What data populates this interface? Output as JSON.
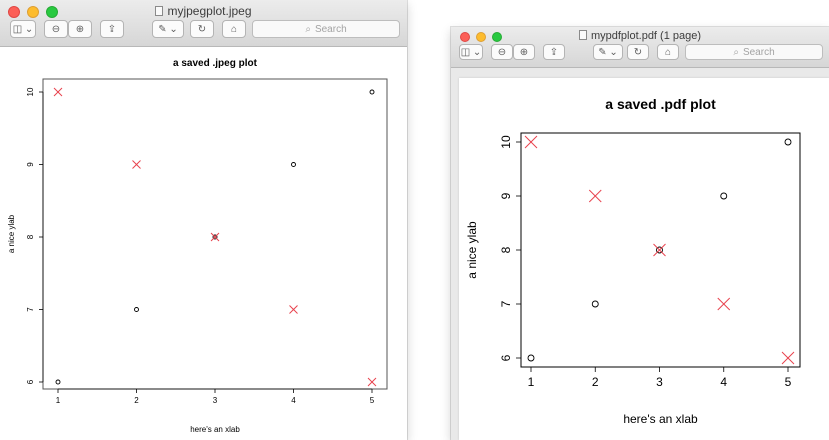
{
  "left_window": {
    "title": "myjpegplot.jpeg",
    "search_placeholder": "Search"
  },
  "right_window": {
    "title": "mypdfplot.pdf (1 page)",
    "search_placeholder": "Search"
  },
  "chart_data": [
    {
      "type": "scatter",
      "title": "a saved .jpeg plot",
      "xlabel": "here's an xlab",
      "ylabel": "a nice ylab",
      "xlim": [
        1,
        5
      ],
      "ylim": [
        6,
        10
      ],
      "x_ticks": [
        "1",
        "2",
        "3",
        "4",
        "5"
      ],
      "y_ticks": [
        "6",
        "7",
        "8",
        "9",
        "10"
      ],
      "series": [
        {
          "marker": "circle",
          "color": "#000000",
          "x": [
            1,
            2,
            3,
            4,
            5
          ],
          "y": [
            6,
            7,
            8,
            9,
            10
          ]
        },
        {
          "marker": "cross",
          "color": "#e8414d",
          "x": [
            1,
            2,
            3,
            4,
            5
          ],
          "y": [
            10,
            9,
            8,
            7,
            6
          ]
        }
      ]
    },
    {
      "type": "scatter",
      "title": "a saved .pdf plot",
      "xlabel": "here's an xlab",
      "ylabel": "a nice ylab",
      "xlim": [
        1,
        5
      ],
      "ylim": [
        6,
        10
      ],
      "x_ticks": [
        "1",
        "2",
        "3",
        "4",
        "5"
      ],
      "y_ticks": [
        "6",
        "7",
        "8",
        "9",
        "10"
      ],
      "series": [
        {
          "marker": "circle",
          "color": "#000000",
          "x": [
            1,
            2,
            3,
            4,
            5
          ],
          "y": [
            6,
            7,
            8,
            9,
            10
          ]
        },
        {
          "marker": "cross",
          "color": "#e8414d",
          "x": [
            1,
            2,
            3,
            4,
            5
          ],
          "y": [
            10,
            9,
            8,
            7,
            6
          ]
        }
      ]
    }
  ]
}
